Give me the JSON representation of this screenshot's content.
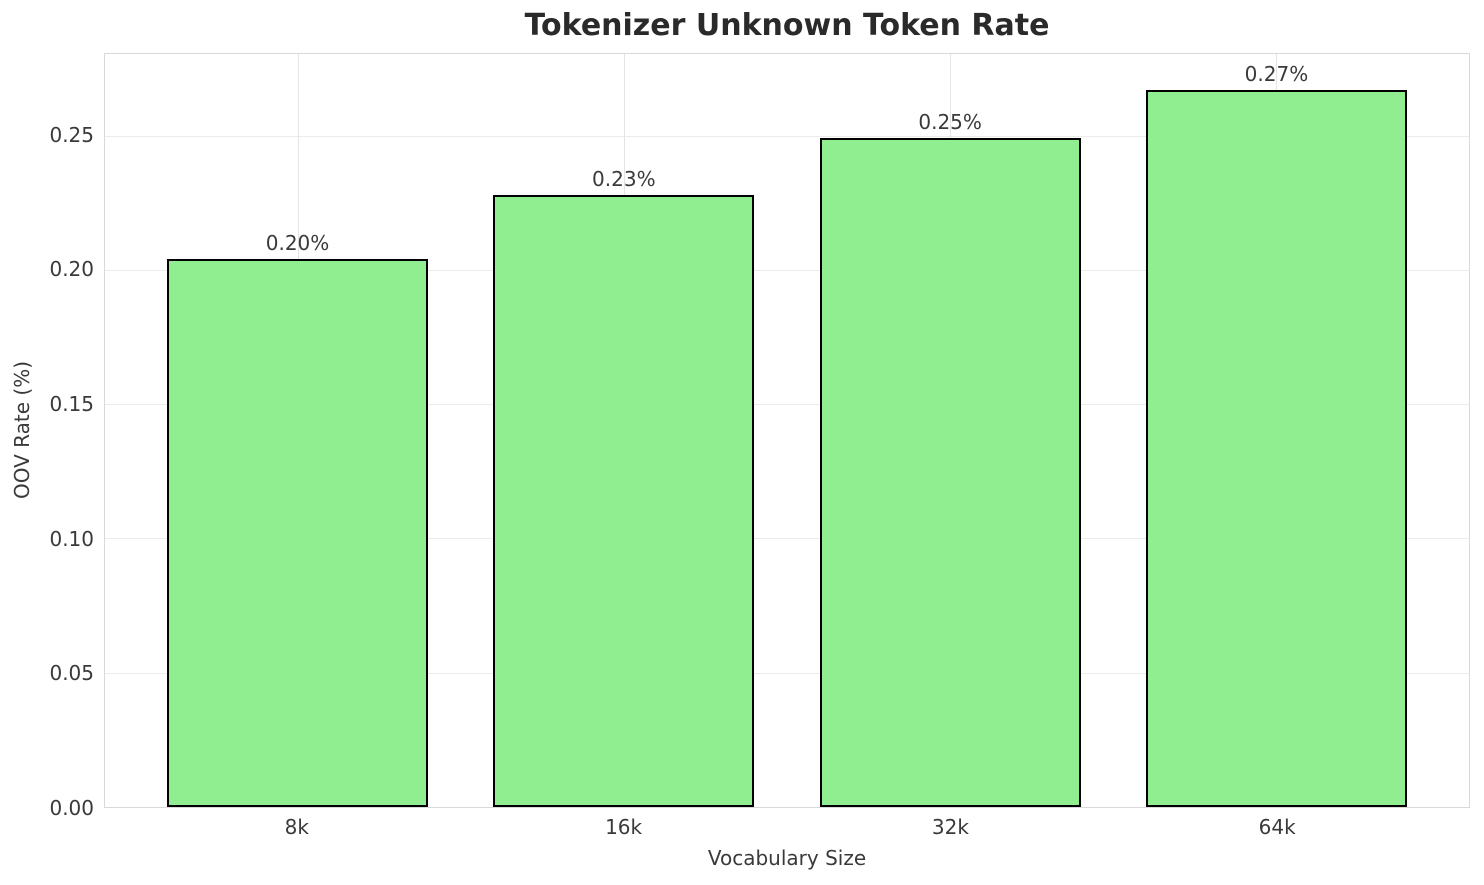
{
  "chart_data": {
    "type": "bar",
    "title": "Tokenizer Unknown Token Rate",
    "xlabel": "Vocabulary Size",
    "ylabel": "OOV Rate (%)",
    "categories": [
      "8k",
      "16k",
      "32k",
      "64k"
    ],
    "values": [
      0.204,
      0.228,
      0.249,
      0.267
    ],
    "bar_labels": [
      "0.20%",
      "0.23%",
      "0.25%",
      "0.27%"
    ],
    "ylim": [
      0,
      0.2804
    ],
    "yticks": [
      0,
      0.05,
      0.1,
      0.15,
      0.2,
      0.25
    ],
    "ytick_labels": [
      "0.00",
      "0.05",
      "0.10",
      "0.15",
      "0.20",
      "0.25"
    ],
    "grid": true,
    "legend_position": "none",
    "colors": {
      "bar_fill": "#90ee90",
      "bar_edge": "#000000",
      "grid_line": "#ebebeb",
      "spine": "#d9d9d9",
      "text": "#3a3a3a",
      "title_text": "#2a2a2a",
      "background": "#ffffff"
    }
  }
}
